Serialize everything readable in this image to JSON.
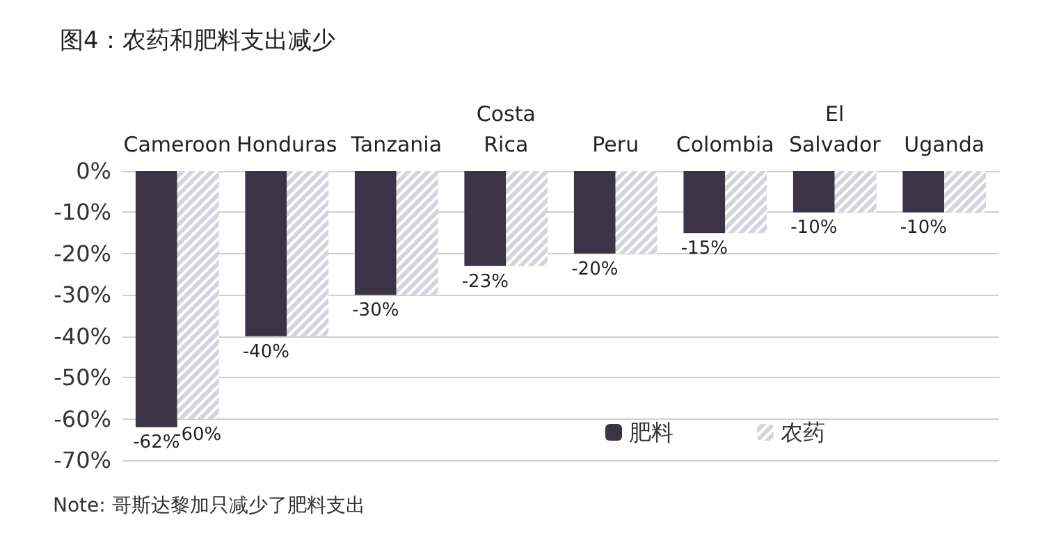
{
  "chart_data": {
    "type": "bar",
    "title": "图4：农药和肥料支出减少",
    "categories": [
      "Cameroon",
      "Honduras",
      "Tanzania",
      "Costa\nRica",
      "Peru",
      "Colombia",
      "El\nSalvador",
      "Uganda"
    ],
    "series": [
      {
        "name": "肥料",
        "color": "#3b3447",
        "values": [
          -62,
          -40,
          -30,
          -23,
          -20,
          -15,
          -10,
          -10
        ],
        "value_labels": [
          "-62%",
          "-40%",
          "-30%",
          "-23%",
          "-20%",
          "-15%",
          "-10%",
          "-10%"
        ]
      },
      {
        "name": "农药",
        "color": "#d4d4dc",
        "values": [
          -60,
          -40,
          -30,
          -23,
          -20,
          -15,
          -10,
          -10
        ],
        "value_labels": [
          "-60%",
          null,
          null,
          null,
          null,
          null,
          null,
          null
        ]
      }
    ],
    "ylim": [
      -70,
      0
    ],
    "yticks": [
      {
        "value": 0,
        "label": "0%"
      },
      {
        "value": -10,
        "label": "-10%"
      },
      {
        "value": -20,
        "label": "-20%"
      },
      {
        "value": -30,
        "label": "-30%"
      },
      {
        "value": -40,
        "label": "-40%"
      },
      {
        "value": -50,
        "label": "-50%"
      },
      {
        "value": -60,
        "label": "-60%"
      },
      {
        "value": -70,
        "label": "-70%"
      }
    ],
    "grid": "y",
    "legend": "bottom right",
    "annotations": [
      "Note: 哥斯达黎加只减少了肥料支出"
    ]
  }
}
